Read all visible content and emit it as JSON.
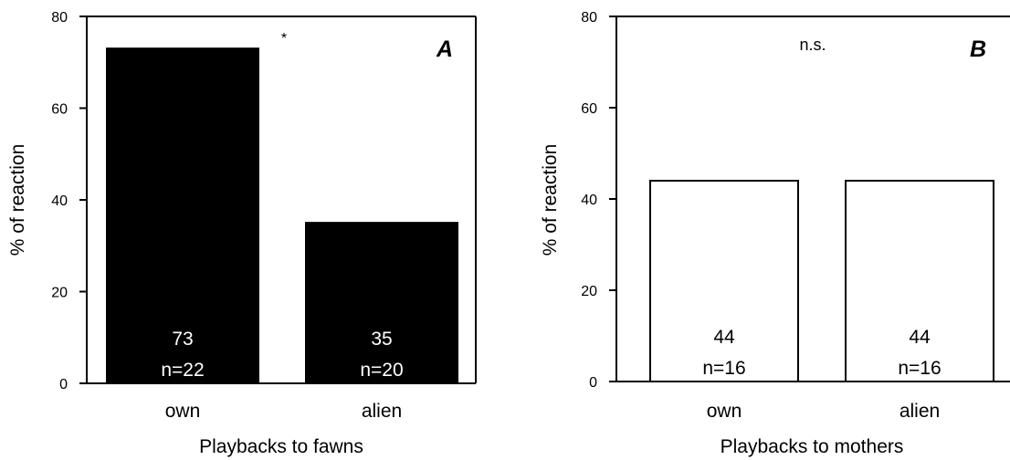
{
  "chart_data": [
    {
      "type": "bar",
      "panel_letter": "A",
      "xlabel": "Playbacks to fawns",
      "ylabel": "% of reaction",
      "ylim": [
        0,
        80
      ],
      "yticks": [
        "0",
        "20",
        "40",
        "60",
        "80"
      ],
      "categories": [
        "own",
        "alien"
      ],
      "values": [
        73,
        35
      ],
      "value_labels": [
        "73",
        "35"
      ],
      "n_labels": [
        "n=22",
        "n=20"
      ],
      "bar_fill": "#000000",
      "bar_text_color": "#ffffff",
      "significance": "*",
      "grid": false,
      "legend": "none"
    },
    {
      "type": "bar",
      "panel_letter": "B",
      "xlabel": "Playbacks to mothers",
      "ylabel": "% of reaction",
      "ylim": [
        0,
        80
      ],
      "yticks": [
        "0",
        "20",
        "40",
        "60",
        "80"
      ],
      "categories": [
        "own",
        "alien"
      ],
      "values": [
        44,
        44
      ],
      "value_labels": [
        "44",
        "44"
      ],
      "n_labels": [
        "n=16",
        "n=16"
      ],
      "bar_fill": "#ffffff",
      "bar_text_color": "#000000",
      "significance": "n.s.",
      "grid": false,
      "legend": "none"
    }
  ]
}
